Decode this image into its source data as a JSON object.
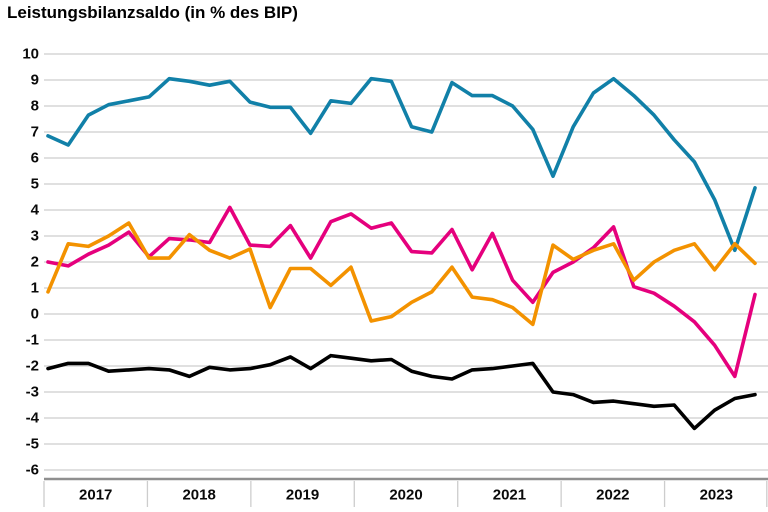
{
  "title": "Leistungsbilanzsaldo (in % des BIP)",
  "colors": {
    "background": "#ffffff",
    "gridline": "#cdcdcd",
    "axis_baseline": "#8f8f8f",
    "label_text": "#0a0a0a"
  },
  "chart_data": {
    "type": "line",
    "title": "Leistungsbilanzsaldo (in % des BIP)",
    "x_tick_labels": [
      "2017",
      "2018",
      "2019",
      "2020",
      "2021",
      "2022",
      "2023"
    ],
    "y_tick_labels": [
      "10",
      "9",
      "8",
      "7",
      "6",
      "5",
      "4",
      "3",
      "2",
      "1",
      "0",
      "-1",
      "-2",
      "-3",
      "-4",
      "-5",
      "-6"
    ],
    "ylim": [
      -6,
      10
    ],
    "y_step": 1,
    "x_range_years": [
      2017,
      2024
    ],
    "grid": true,
    "legend": "none",
    "series": [
      {
        "name": "series-teal",
        "color": "#1180a8",
        "values": [
          6.85,
          6.5,
          7.65,
          8.05,
          8.2,
          8.35,
          9.05,
          8.95,
          8.8,
          8.95,
          8.15,
          7.95,
          7.95,
          6.95,
          8.2,
          8.1,
          9.05,
          8.95,
          7.2,
          7.0,
          8.9,
          8.4,
          8.4,
          8.0,
          7.1,
          5.3,
          7.2,
          8.5,
          9.05,
          8.4,
          7.65,
          6.7,
          5.85,
          4.4,
          2.45,
          4.85
        ]
      },
      {
        "name": "series-magenta",
        "color": "#e5007d",
        "values": [
          2.0,
          1.85,
          2.3,
          2.65,
          3.15,
          2.2,
          2.9,
          2.85,
          2.75,
          4.1,
          2.65,
          2.6,
          3.4,
          2.15,
          3.55,
          3.85,
          3.3,
          3.5,
          2.4,
          2.35,
          3.25,
          1.7,
          3.1,
          1.3,
          0.45,
          1.6,
          2.0,
          2.55,
          3.35,
          1.05,
          0.8,
          0.3,
          -0.3,
          -1.2,
          -2.4,
          0.75
        ]
      },
      {
        "name": "series-orange",
        "color": "#f39200",
        "values": [
          0.85,
          2.7,
          2.6,
          3.0,
          3.5,
          2.15,
          2.15,
          3.05,
          2.45,
          2.15,
          2.5,
          0.25,
          1.75,
          1.75,
          1.1,
          1.8,
          -0.27,
          -0.1,
          0.45,
          0.85,
          1.8,
          0.65,
          0.55,
          0.25,
          -0.4,
          2.65,
          2.1,
          2.45,
          2.7,
          1.3,
          2.0,
          2.45,
          2.7,
          1.7,
          2.7,
          1.95
        ]
      },
      {
        "name": "series-black",
        "color": "#000000",
        "values": [
          -2.1,
          -1.9,
          -1.9,
          -2.2,
          -2.15,
          -2.1,
          -2.15,
          -2.4,
          -2.05,
          -2.15,
          -2.1,
          -1.95,
          -1.65,
          -2.1,
          -1.6,
          -1.7,
          -1.8,
          -1.75,
          -2.2,
          -2.4,
          -2.5,
          -2.15,
          -2.1,
          -2.0,
          -1.9,
          -3.0,
          -3.1,
          -3.4,
          -3.35,
          -3.45,
          -3.55,
          -3.5,
          -4.4,
          -3.7,
          -3.25,
          -3.1
        ]
      }
    ]
  }
}
